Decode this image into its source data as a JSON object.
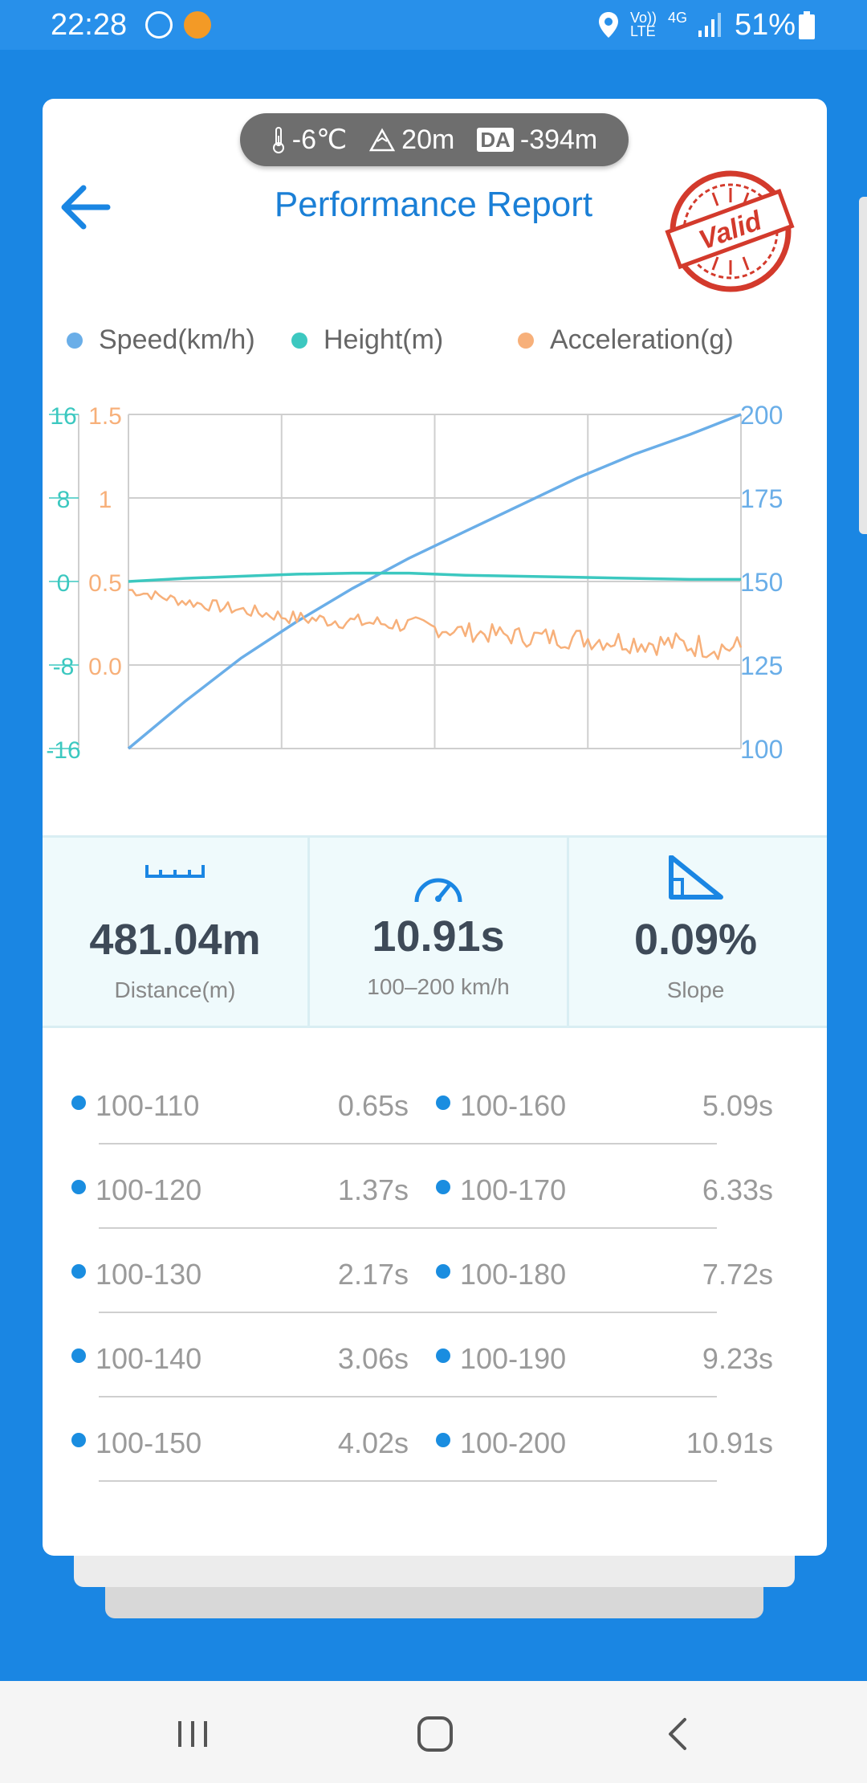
{
  "status_bar": {
    "time": "22:28",
    "network": "Vo)) LTE",
    "network2": "4G",
    "battery": "51%",
    "icons": [
      "app-notification-icon",
      "shield-app-icon",
      "location-icon",
      "signal-icon",
      "battery-icon"
    ]
  },
  "conditions": {
    "temperature": "-6℃",
    "altitude": "20m",
    "da_label": "DA",
    "density_altitude": "-394m"
  },
  "header": {
    "title": "Performance Report",
    "stamp_text": "Valid"
  },
  "legend": {
    "speed": "Speed(km/h)",
    "height": "Height(m)",
    "acceleration": "Acceleration(g)"
  },
  "colors": {
    "speed": "#6aaee8",
    "height": "#3cc8c0",
    "acceleration": "#f7b07a",
    "accent": "#1a86e3",
    "stamp": "#d33a2c"
  },
  "chart_data": {
    "type": "line",
    "x": [
      0,
      1,
      2,
      3,
      4,
      5,
      6,
      7,
      8,
      9,
      10,
      10.91
    ],
    "axes": {
      "speed_ticks": [
        "200",
        "175",
        "150",
        "125",
        "100"
      ],
      "speed_range": [
        100,
        200
      ],
      "height_ticks": [
        "16",
        "8",
        "0",
        "-8",
        "-16"
      ],
      "height_range": [
        -16,
        16
      ],
      "acceleration_ticks": [
        "1.5",
        "1",
        "0.5",
        "0.0"
      ],
      "acceleration_range": [
        -0.5,
        1.5
      ]
    },
    "grid": true,
    "legend_position": "top",
    "series": [
      {
        "name": "Speed(km/h)",
        "axis": "right",
        "values": [
          100,
          114,
          127,
          138,
          148,
          157,
          165,
          173,
          181,
          188,
          194,
          200
        ]
      },
      {
        "name": "Height(m)",
        "axis": "left",
        "values": [
          0,
          0.3,
          0.5,
          0.7,
          0.8,
          0.8,
          0.6,
          0.5,
          0.4,
          0.3,
          0.2,
          0.2
        ]
      },
      {
        "name": "Acceleration(g)",
        "axis": "left2",
        "values": [
          0.45,
          0.38,
          0.33,
          0.28,
          0.26,
          0.24,
          0.2,
          0.17,
          0.16,
          0.14,
          0.12,
          0.1
        ]
      }
    ]
  },
  "stats": [
    {
      "icon": "ruler-icon",
      "value": "481.04m",
      "label": "Distance(m)"
    },
    {
      "icon": "speedometer-icon",
      "value": "10.91s",
      "label": "100–200 km/h"
    },
    {
      "icon": "slope-icon",
      "value": "0.09%",
      "label": "Slope"
    }
  ],
  "splits": [
    {
      "left_range": "100-110",
      "left_time": "0.65s",
      "right_range": "100-160",
      "right_time": "5.09s"
    },
    {
      "left_range": "100-120",
      "left_time": "1.37s",
      "right_range": "100-170",
      "right_time": "6.33s"
    },
    {
      "left_range": "100-130",
      "left_time": "2.17s",
      "right_range": "100-180",
      "right_time": "7.72s"
    },
    {
      "left_range": "100-140",
      "left_time": "3.06s",
      "right_range": "100-190",
      "right_time": "9.23s"
    },
    {
      "left_range": "100-150",
      "left_time": "4.02s",
      "right_range": "100-200",
      "right_time": "10.91s"
    }
  ],
  "nav": {
    "icons": [
      "recent-apps-icon",
      "home-icon",
      "back-icon"
    ]
  }
}
